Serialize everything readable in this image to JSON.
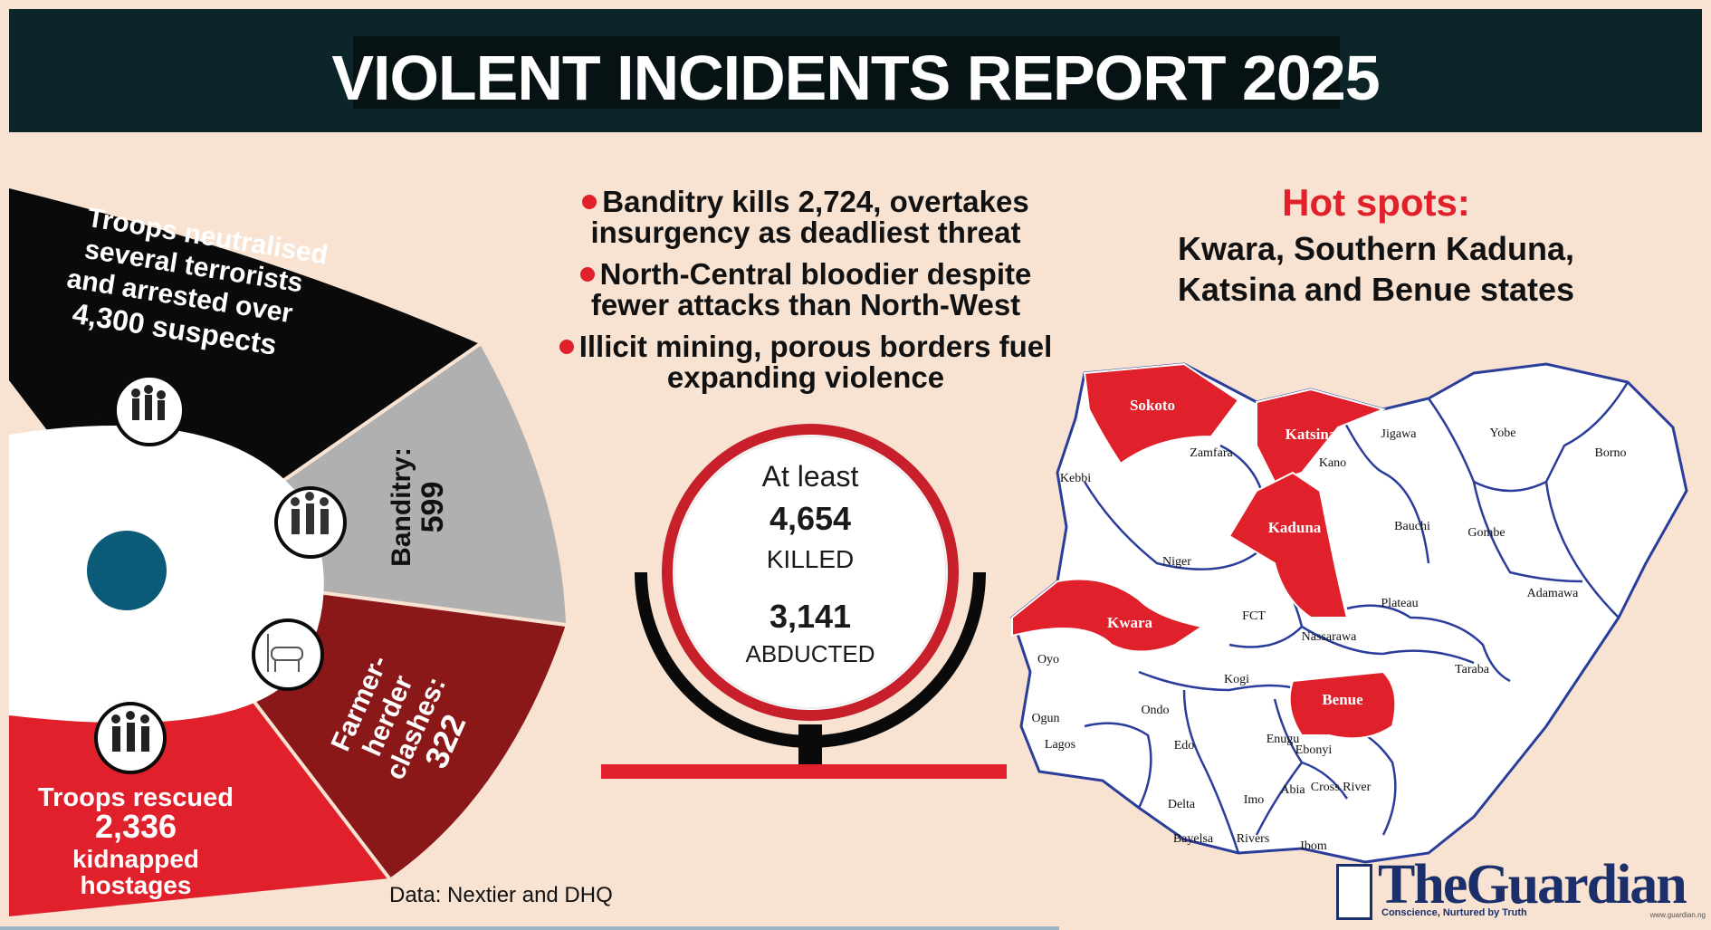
{
  "header": {
    "title": "VIOLENT INCIDENTS REPORT 2025"
  },
  "wheel": {
    "troops_neutralised": [
      "Troops neutralised",
      "several terrorists",
      "and arrested over",
      "4,300 suspects"
    ],
    "banditry": {
      "label": "Banditry:",
      "value": "599"
    },
    "farmer_herder": {
      "label_lines": [
        "Farmer-",
        "herder",
        "clashes:"
      ],
      "value": "322"
    },
    "troops_rescued": [
      "Troops rescued",
      "2,336",
      "kidnapped",
      "hostages"
    ],
    "icons": [
      "soldiers-icon",
      "bandits-icon",
      "herder-cattle-icon",
      "hostages-icon"
    ]
  },
  "headlines": [
    [
      "Banditry kills 2,724, overtakes",
      "insurgency as deadliest threat"
    ],
    [
      "North-Central bloodier despite",
      "fewer attacks than North-West"
    ],
    [
      "Illicit mining, porous borders fuel",
      "expanding violence"
    ]
  ],
  "hotspots": {
    "title": "Hot spots:",
    "lines": [
      "Kwara, Southern Kaduna,",
      "Katsina and Benue states"
    ]
  },
  "gauge": {
    "at_least": "At least",
    "killed_value": "4,654",
    "killed_label": "KILLED",
    "abducted_value": "3,141",
    "abducted_label": "ABDUCTED"
  },
  "source": "Data: Nextier and DHQ",
  "map": {
    "hot_states": [
      "Sokoto",
      "Katsina",
      "Kaduna",
      "Kwara",
      "Benue"
    ],
    "other_states": [
      "Zamfara",
      "Kebbi",
      "Kano",
      "Jigawa",
      "Yobe",
      "Borno",
      "Bauchi",
      "Gombe",
      "Niger",
      "Adamawa",
      "FCT",
      "Plateau",
      "Nassarawa",
      "Oyo",
      "Kogi",
      "Taraba",
      "Ogun",
      "Ondo",
      "Lagos",
      "Edo",
      "Enugu",
      "Ebonyi",
      "Imo",
      "Abia",
      "Cross River",
      "Delta",
      "Bayelsa",
      "Rivers",
      "Ibom"
    ]
  },
  "logo": {
    "the": "The",
    "name": "Guardian",
    "tagline": "Conscience, Nurtured by Truth",
    "url": "www.guardian.ng"
  },
  "colors": {
    "header_bg": "#0c2528",
    "page_bg": "#f8e3d2",
    "accent_red": "#e0202a",
    "dark_red": "#8b1818",
    "grey": "#b0b0b0",
    "black": "#0a0a0a",
    "map_outline": "#2a3d9a",
    "logo_blue": "#1b2f6b"
  }
}
